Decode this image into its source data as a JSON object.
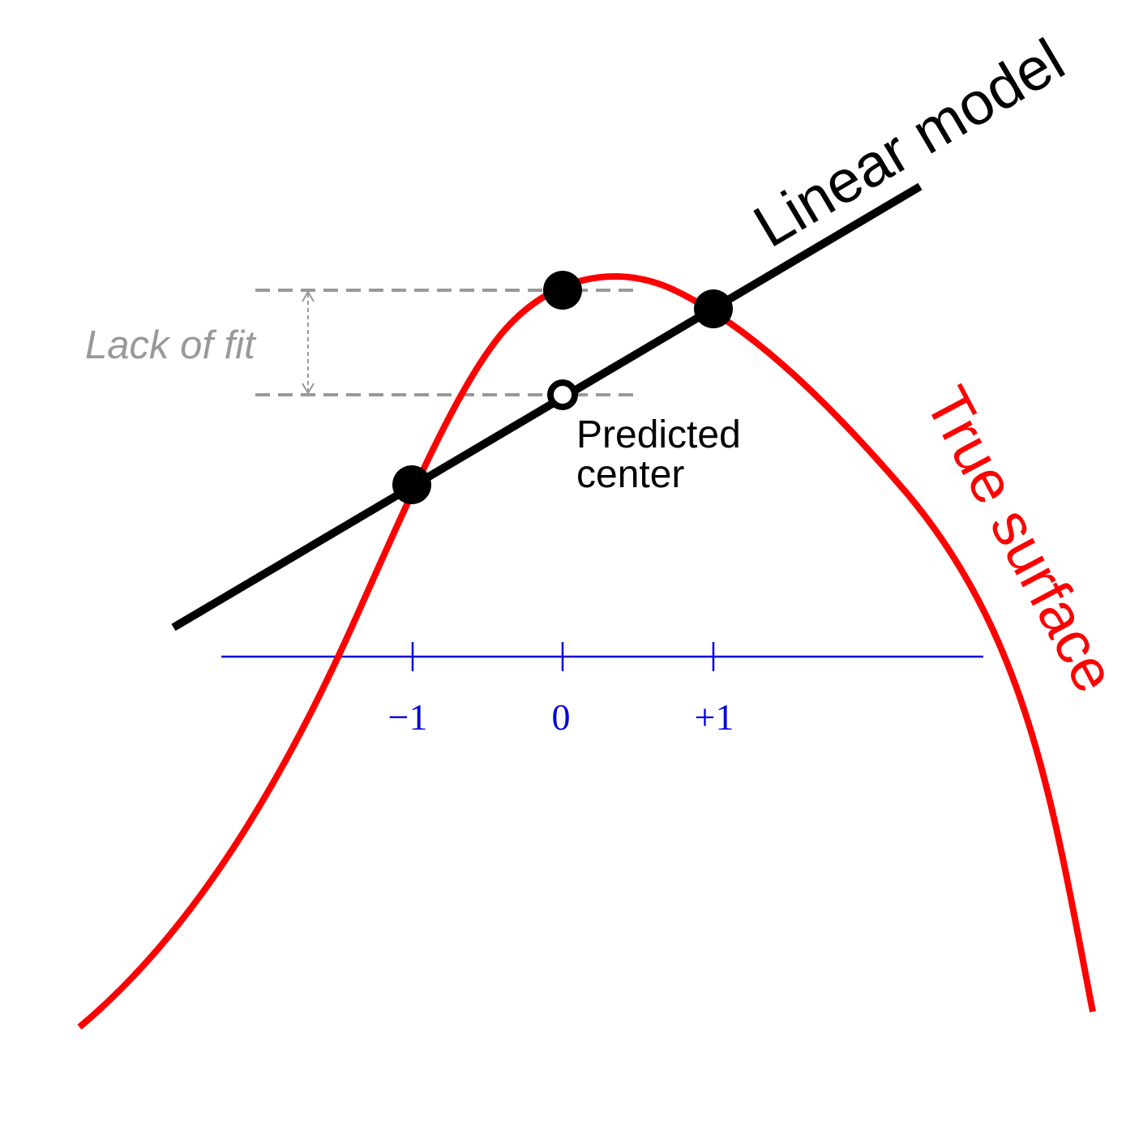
{
  "labels": {
    "linear_model": "Linear model",
    "true_surface": "True surface",
    "lack_of_fit": "Lack of fit",
    "predicted_line1": "Predicted",
    "predicted_line2": "center"
  },
  "axis": {
    "ticks": [
      "−1",
      "0",
      "+1"
    ]
  },
  "colors": {
    "true_surface": "#ff0000",
    "linear_model": "#000000",
    "axis": "#0000dd",
    "lack_of_fit": "#999999",
    "points": "#000000"
  }
}
